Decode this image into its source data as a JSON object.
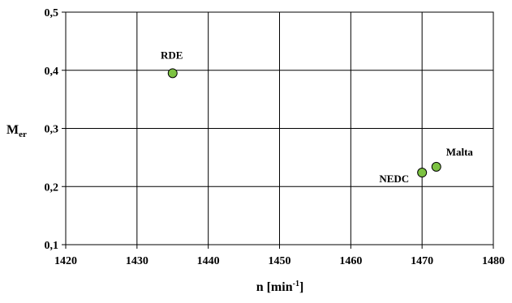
{
  "chart_data": {
    "type": "scatter",
    "title": "",
    "xlabel": "n [min",
    "xlabel_sup": "-1",
    "xlabel_suffix": "]",
    "ylabel": "M",
    "ylabel_sub": "er",
    "xlim": [
      1420,
      1480
    ],
    "ylim": [
      0.1,
      0.5
    ],
    "xticks": [
      "1420",
      "1430",
      "1440",
      "1450",
      "1460",
      "1470",
      "1480"
    ],
    "yticks": [
      "0,1",
      "0,2",
      "0,3",
      "0,4",
      "0,5"
    ],
    "grid": true,
    "marker_color": "#7cc242",
    "points": [
      {
        "label": "RDE",
        "x": 1435,
        "y": 0.395
      },
      {
        "label": "NEDC",
        "x": 1470,
        "y": 0.224
      },
      {
        "label": "Malta",
        "x": 1472,
        "y": 0.234
      }
    ]
  }
}
